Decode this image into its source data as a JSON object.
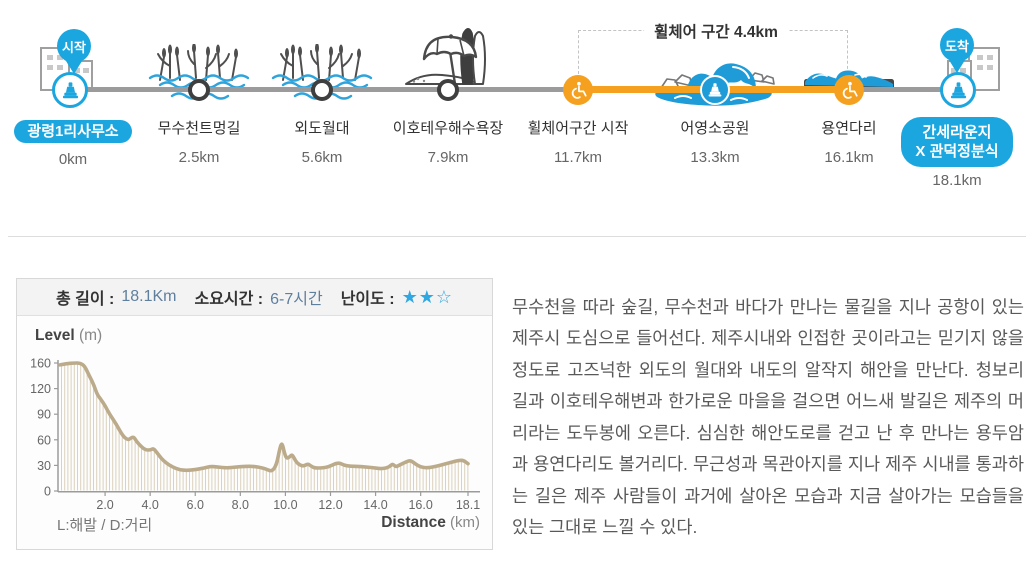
{
  "colors": {
    "accent_blue": "#1ca6e0",
    "wave_blue": "#1f9cd8",
    "orange": "#f5a01f",
    "route_gray": "#9b9b9b",
    "curve_tan": "#bcab8b",
    "star_blue": "#2fa7e2",
    "text_dark": "#333333",
    "text_body": "#595959"
  },
  "route": {
    "start_pin_label": "시작",
    "finish_pin_label": "도착",
    "wheelchair_section_label": "휠체어 구간 4.4km",
    "waypoints": [
      {
        "name": "광령1리사무소",
        "distance": "0km"
      },
      {
        "name": "무수천트멍길",
        "distance": "2.5km"
      },
      {
        "name": "외도월대",
        "distance": "5.6km"
      },
      {
        "name": "이호테우해수욕장",
        "distance": "7.9km"
      },
      {
        "name": "휠체어구간 시작",
        "distance": "11.7km"
      },
      {
        "name": "어영소공원",
        "distance": "13.3km"
      },
      {
        "name": "용연다리",
        "distance": "16.1km"
      },
      {
        "name_lines": [
          "간세라운지",
          "X 관덕정분식"
        ],
        "distance": "18.1km"
      }
    ]
  },
  "summary": {
    "length_label": "총 길이 :",
    "length_value": "18.1Km",
    "duration_label": "소요시간 :",
    "duration_value": "6-7시간",
    "difficulty_label": "난이도 :",
    "difficulty_stars": "★★☆"
  },
  "chart_data": {
    "type": "area",
    "ylabel_bold": "Level",
    "ylabel_unit": "(m)",
    "xlabel_bold": "Distance",
    "xlabel_unit": "(km)",
    "legend_note": "L:해발 / D:거리",
    "y_ticks": [
      0,
      30,
      60,
      90,
      120,
      160
    ],
    "y_axis_note": "tick stops equally spaced (non-linear above 120)",
    "x_max": 18.1,
    "x_ticks": [
      {
        "v": 2,
        "label": "2.0"
      },
      {
        "v": 4,
        "label": "4.0"
      },
      {
        "v": 6,
        "label": "6.0"
      },
      {
        "v": 8,
        "label": "8.0"
      },
      {
        "v": 10,
        "label": "10.0"
      },
      {
        "v": 12,
        "label": "12.0"
      },
      {
        "v": 14,
        "label": "14.0"
      },
      {
        "v": 16,
        "label": "16.0"
      },
      {
        "v": 18.1,
        "label": "18.1"
      }
    ],
    "points": [
      [
        0,
        157
      ],
      [
        0.3,
        159
      ],
      [
        0.6,
        160
      ],
      [
        0.9,
        160
      ],
      [
        1.1,
        155
      ],
      [
        1.3,
        140
      ],
      [
        1.5,
        126
      ],
      [
        1.65,
        113
      ],
      [
        1.8,
        108
      ],
      [
        2.0,
        100
      ],
      [
        2.2,
        90
      ],
      [
        2.5,
        78
      ],
      [
        2.8,
        64
      ],
      [
        3.0,
        60
      ],
      [
        3.1,
        61
      ],
      [
        3.25,
        64
      ],
      [
        3.4,
        58
      ],
      [
        3.6,
        52
      ],
      [
        3.8,
        48
      ],
      [
        4.0,
        48
      ],
      [
        4.15,
        50
      ],
      [
        4.3,
        45
      ],
      [
        4.5,
        38
      ],
      [
        4.7,
        33
      ],
      [
        5.0,
        28
      ],
      [
        5.3,
        25
      ],
      [
        5.6,
        24
      ],
      [
        6.0,
        25
      ],
      [
        6.4,
        27
      ],
      [
        6.7,
        29
      ],
      [
        7.0,
        28
      ],
      [
        7.4,
        27
      ],
      [
        7.8,
        28
      ],
      [
        8.2,
        29
      ],
      [
        8.6,
        29
      ],
      [
        9.0,
        27
      ],
      [
        9.2,
        25
      ],
      [
        9.4,
        23
      ],
      [
        9.6,
        30
      ],
      [
        9.75,
        50
      ],
      [
        9.85,
        57
      ],
      [
        9.95,
        45
      ],
      [
        10.05,
        38
      ],
      [
        10.2,
        40
      ],
      [
        10.3,
        43
      ],
      [
        10.45,
        35
      ],
      [
        10.6,
        31
      ],
      [
        10.8,
        29
      ],
      [
        11.0,
        32
      ],
      [
        11.15,
        29
      ],
      [
        11.3,
        27
      ],
      [
        11.6,
        27
      ],
      [
        11.9,
        28
      ],
      [
        12.2,
        32
      ],
      [
        12.4,
        33
      ],
      [
        12.6,
        30
      ],
      [
        12.9,
        29
      ],
      [
        13.2,
        29
      ],
      [
        13.6,
        28
      ],
      [
        14.0,
        27
      ],
      [
        14.3,
        26
      ],
      [
        14.6,
        28
      ],
      [
        14.75,
        32
      ],
      [
        14.9,
        28
      ],
      [
        15.1,
        31
      ],
      [
        15.35,
        34
      ],
      [
        15.55,
        36
      ],
      [
        15.75,
        32
      ],
      [
        16.0,
        28
      ],
      [
        16.3,
        27
      ],
      [
        16.7,
        29
      ],
      [
        17.0,
        31
      ],
      [
        17.4,
        34
      ],
      [
        17.7,
        36
      ],
      [
        17.9,
        36
      ],
      [
        18.1,
        32
      ]
    ]
  },
  "description": "무수천을 따라 숲길, 무수천과 바다가 만나는 물길을 지나 공항이 있는 제주시 도심으로 들어선다. 제주시내와 인접한 곳이라고는 믿기지 않을 정도로 고즈넉한 외도의 월대와 내도의 알작지 해안을 만난다. 청보리 길과 이호테우해변과 한가로운 마을을 걸으면 어느새 발길은 제주의 머리라는 도두봉에 오른다. 심심한 해안도로를 걷고 난 후 만나는 용두암과 용연다리도 볼거리다. 무근성과 목관아지를 지나 제주 시내를 통과하는 길은 제주 사람들이 과거에 살아온 모습과 지금 살아가는 모습들을 있는 그대로 느낄 수 있다."
}
